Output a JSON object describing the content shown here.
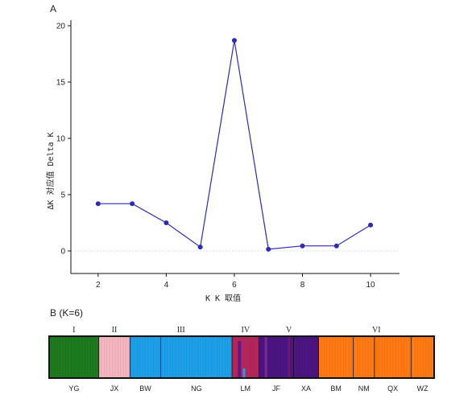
{
  "panelA": {
    "label": "A"
  },
  "panelB": {
    "label": "B (K=6)"
  },
  "chart_data": [
    {
      "type": "line",
      "xlabel": "K  K 取值",
      "ylabel": "ΔK 对应值 Delta K",
      "x": [
        2,
        3,
        4,
        5,
        6,
        7,
        8,
        9,
        10
      ],
      "values": [
        4.2,
        4.2,
        2.5,
        0.35,
        18.7,
        0.15,
        0.45,
        0.45,
        2.3
      ],
      "xticks": [
        2,
        4,
        6,
        8,
        10
      ],
      "yticks": [
        0,
        5,
        10,
        15,
        20
      ],
      "xlim": [
        1.2,
        10.85
      ],
      "ylim": [
        -2,
        20.5
      ],
      "grid": false,
      "color": "#2b2bb8"
    },
    {
      "type": "bar",
      "title": "B (K=6)",
      "groups": [
        "I",
        "II",
        "III",
        "IV",
        "V",
        "VI"
      ],
      "populations": [
        "YG",
        "JX",
        "BW",
        "NG",
        "LM",
        "JF",
        "XA",
        "BM",
        "NM",
        "QX",
        "WZ"
      ],
      "cluster_colors": [
        "#1e7a1e",
        "#f4b6c0",
        "#1ea0e8",
        "#b5275a",
        "#4a1580",
        "#ff7a12"
      ],
      "group_extents": [
        {
          "group": "I",
          "from": 0,
          "to": 0.129
        },
        {
          "group": "II",
          "from": 0.129,
          "to": 0.21
        },
        {
          "group": "III",
          "from": 0.21,
          "to": 0.475
        },
        {
          "group": "IV",
          "from": 0.475,
          "to": 0.545
        },
        {
          "group": "V",
          "from": 0.545,
          "to": 0.7
        },
        {
          "group": "VI",
          "from": 0.7,
          "to": 1.0
        }
      ],
      "population_dividers": [
        0.129,
        0.21,
        0.29,
        0.475,
        0.545,
        0.635,
        0.7,
        0.79,
        0.845,
        0.94
      ]
    }
  ]
}
